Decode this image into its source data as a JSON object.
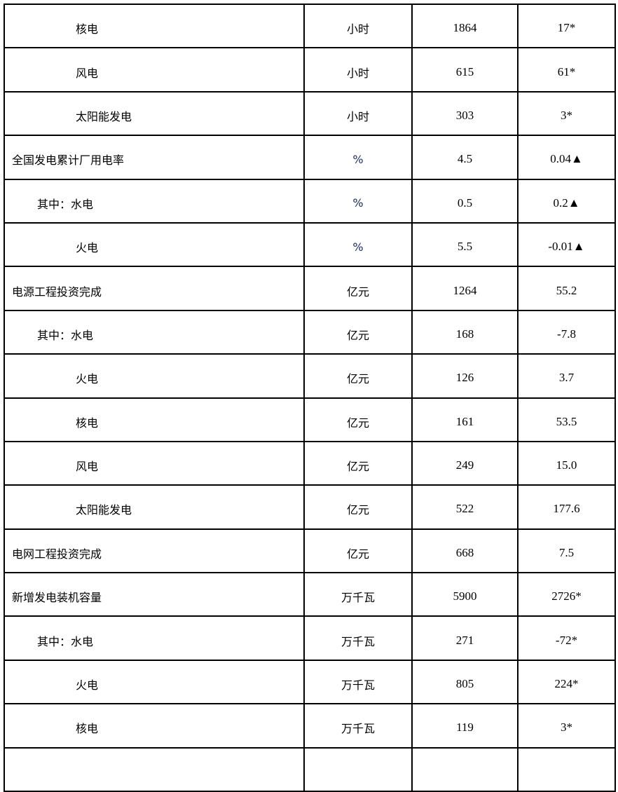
{
  "rows": [
    {
      "name": "核电",
      "level": 2,
      "unit": "小时",
      "value": "1864",
      "change": "17*"
    },
    {
      "name": "风电",
      "level": 2,
      "unit": "小时",
      "value": "615",
      "change": "61*"
    },
    {
      "name": "太阳能发电",
      "level": 2,
      "unit": "小时",
      "value": "303",
      "change": "3*"
    },
    {
      "name": "全国发电累计厂用电率",
      "level": 0,
      "unit": "%",
      "value": "4.5",
      "change": "0.04▲"
    },
    {
      "name": "其中：水电",
      "level": 1,
      "unit": "%",
      "value": "0.5",
      "change": "0.2▲"
    },
    {
      "name": "火电",
      "level": 2,
      "unit": "%",
      "value": "5.5",
      "change": "-0.01▲"
    },
    {
      "name": "电源工程投资完成",
      "level": 0,
      "unit": "亿元",
      "value": "1264",
      "change": "55.2"
    },
    {
      "name": "其中：水电",
      "level": 1,
      "unit": "亿元",
      "value": "168",
      "change": "-7.8"
    },
    {
      "name": "火电",
      "level": 2,
      "unit": "亿元",
      "value": "126",
      "change": "3.7"
    },
    {
      "name": "核电",
      "level": 2,
      "unit": "亿元",
      "value": "161",
      "change": "53.5"
    },
    {
      "name": "风电",
      "level": 2,
      "unit": "亿元",
      "value": "249",
      "change": "15.0"
    },
    {
      "name": "太阳能发电",
      "level": 2,
      "unit": "亿元",
      "value": "522",
      "change": "177.6"
    },
    {
      "name": "电网工程投资完成",
      "level": 0,
      "unit": "亿元",
      "value": "668",
      "change": "7.5"
    },
    {
      "name": "新增发电装机容量",
      "level": 0,
      "unit": "万千瓦",
      "value": "5900",
      "change": "2726*"
    },
    {
      "name": "其中：水电",
      "level": 1,
      "unit": "万千瓦",
      "value": "271",
      "change": "-72*"
    },
    {
      "name": "火电",
      "level": 2,
      "unit": "万千瓦",
      "value": "805",
      "change": "224*"
    },
    {
      "name": "核电",
      "level": 2,
      "unit": "万千瓦",
      "value": "119",
      "change": "3*"
    }
  ]
}
